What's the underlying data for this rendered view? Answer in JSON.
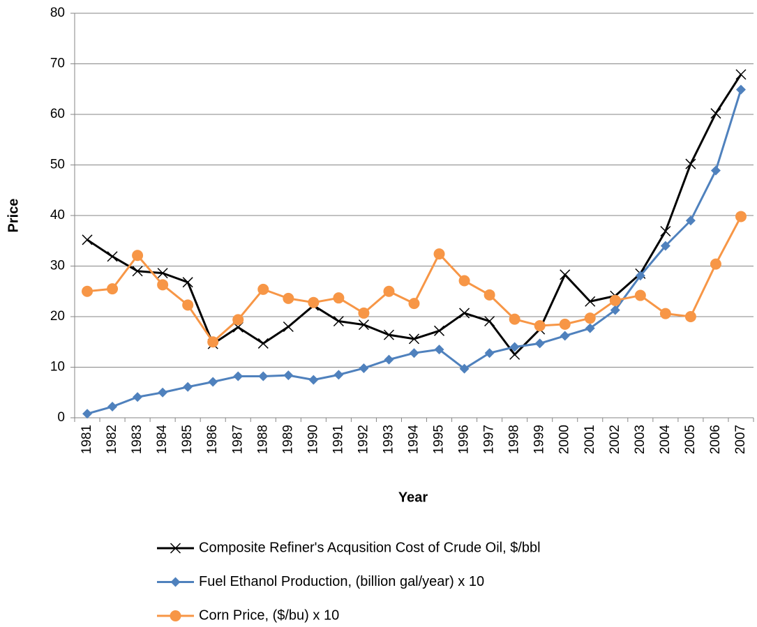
{
  "chart_data": {
    "type": "line",
    "x_label": "Year",
    "y_label": "Price",
    "categories": [
      "1981",
      "1982",
      "1983",
      "1984",
      "1985",
      "1986",
      "1987",
      "1988",
      "1989",
      "1990",
      "1991",
      "1992",
      "1993",
      "1994",
      "1995",
      "1996",
      "1997",
      "1998",
      "1999",
      "2000",
      "2001",
      "2002",
      "2003",
      "2004",
      "2005",
      "2006",
      "2007"
    ],
    "series": [
      {
        "name": "Composite Refiner's Acqusition Cost of Crude Oil, $/bbl",
        "color": "#000000",
        "marker": "x",
        "values": [
          35.2,
          31.9,
          29.0,
          28.6,
          26.8,
          14.6,
          17.9,
          14.7,
          18.0,
          22.2,
          19.1,
          18.4,
          16.4,
          15.6,
          17.2,
          20.7,
          19.1,
          12.5,
          17.5,
          28.3,
          23.0,
          24.1,
          28.5,
          36.9,
          50.2,
          60.2,
          67.9
        ]
      },
      {
        "name": "Fuel Ethanol Production, (billion gal/year) x 10",
        "color": "#4f81bd",
        "marker": "diamond",
        "values": [
          0.8,
          2.2,
          4.1,
          5.0,
          6.1,
          7.1,
          8.2,
          8.2,
          8.4,
          7.5,
          8.5,
          9.8,
          11.5,
          12.8,
          13.5,
          9.7,
          12.8,
          14.0,
          14.7,
          16.2,
          17.7,
          21.3,
          28.1,
          34.0,
          39.0,
          48.9,
          64.9
        ]
      },
      {
        "name": "Corn Price, ($/bu) x 10",
        "color": "#f79646",
        "marker": "circle",
        "values": [
          25.0,
          25.5,
          32.1,
          26.3,
          22.3,
          15.0,
          19.4,
          25.4,
          23.6,
          22.8,
          23.7,
          20.7,
          25.0,
          22.6,
          32.4,
          27.1,
          24.3,
          19.5,
          18.2,
          18.5,
          19.7,
          23.2,
          24.2,
          20.6,
          20.0,
          30.4,
          39.8
        ]
      }
    ],
    "ylim": [
      0,
      80
    ],
    "yticks": [
      0,
      10,
      20,
      30,
      40,
      50,
      60,
      70,
      80
    ],
    "grid": true,
    "legend": "bottom"
  }
}
